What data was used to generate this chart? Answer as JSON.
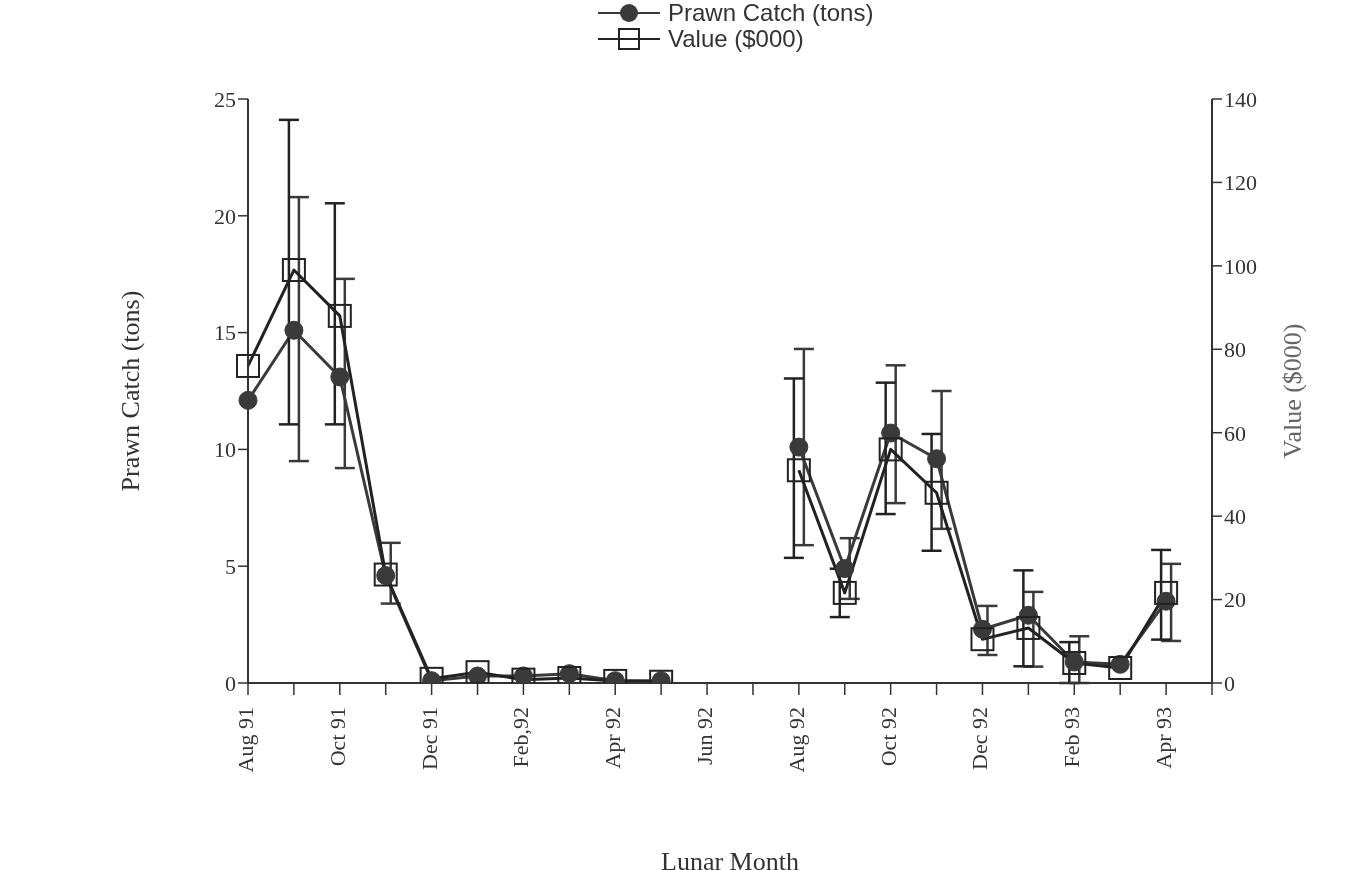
{
  "chart_data": {
    "type": "line",
    "xlabel": "Lunar Month",
    "ylabel": "Prawn Catch (tons)",
    "y2label": "Value ($000)",
    "categories": [
      "Aug 91",
      null,
      "Oct 91",
      null,
      "Dec 91",
      null,
      "Feb,92",
      null,
      "Apr 92",
      null,
      "Jun 92",
      null,
      "Aug 92",
      null,
      "Oct 92",
      null,
      "Dec 92",
      null,
      "Feb 93",
      null,
      "Apr 93",
      null
    ],
    "series": [
      {
        "name": "Prawn Catch (tons)",
        "color": "#3a3a3a",
        "marker": "circle",
        "values": [
          12.1,
          15.1,
          13.1,
          4.6,
          0.1,
          0.3,
          0.3,
          0.4,
          0.1,
          0.1,
          null,
          null,
          10.1,
          4.9,
          10.7,
          9.6,
          2.3,
          2.9,
          0.9,
          0.8,
          3.5,
          null
        ],
        "errors": [
          null,
          [
            9.5,
            20.8
          ],
          [
            9.2,
            17.3
          ],
          [
            3.4,
            6.0
          ],
          null,
          null,
          null,
          null,
          null,
          null,
          null,
          null,
          [
            5.9,
            14.3
          ],
          [
            3.6,
            6.2
          ],
          [
            7.7,
            13.6
          ],
          [
            6.6,
            12.5
          ],
          [
            1.2,
            3.3
          ],
          [
            0.7,
            3.9
          ],
          [
            0,
            2.0
          ],
          null,
          [
            1.8,
            5.1
          ],
          null
        ]
      },
      {
        "name": "Value ($000)",
        "color": "#222222",
        "marker": "square",
        "axis": "y2",
        "values": [
          76,
          99,
          88,
          26,
          1,
          2.6,
          0.8,
          1.2,
          0.5,
          0.3,
          null,
          null,
          51,
          21.6,
          56,
          45.6,
          10.5,
          13.2,
          4.8,
          3.6,
          21.6,
          null
        ],
        "errors": [
          null,
          [
            62,
            135
          ],
          [
            62,
            115
          ],
          null,
          null,
          null,
          null,
          null,
          null,
          null,
          null,
          null,
          [
            30,
            73
          ],
          [
            15.8,
            27.4
          ],
          [
            40.5,
            72
          ],
          [
            31.7,
            59.7
          ],
          null,
          [
            4,
            27
          ],
          [
            0,
            9.8
          ],
          null,
          [
            10.4,
            31.9
          ],
          null
        ]
      }
    ],
    "ylim": [
      0,
      25
    ],
    "yticks": [
      0,
      5,
      10,
      15,
      20,
      25
    ],
    "y2lim": [
      0,
      140
    ],
    "y2ticks": [
      0,
      20,
      40,
      60,
      80,
      100,
      120,
      140
    ],
    "grid": false,
    "legend": "top",
    "line_style": "solid"
  }
}
